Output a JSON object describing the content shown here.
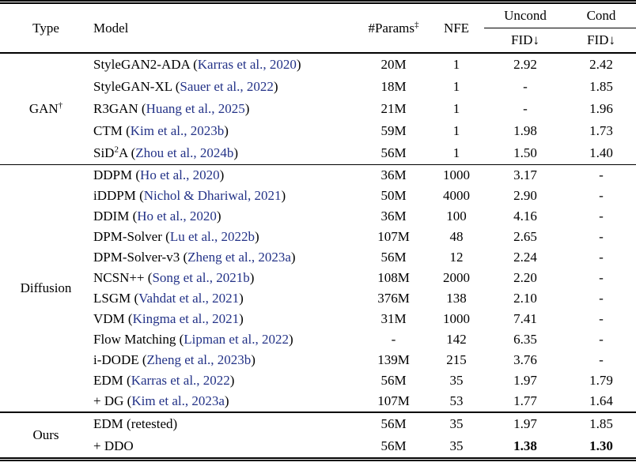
{
  "colors": {
    "citation": "#233287",
    "text": "#000000"
  },
  "table": {
    "header": {
      "type": "Type",
      "model": "Model",
      "params": "#Params",
      "params_sup": "‡",
      "nfe": "NFE",
      "uncond": "Uncond",
      "cond": "Cond",
      "fid_uncond": "FID↓",
      "fid_cond": "FID↓"
    },
    "sections": [
      {
        "label": "GAN",
        "label_sup": "†",
        "rows": [
          {
            "model": [
              {
                "t": "StyleGAN2-ADA"
              }
            ],
            "cite": "Karras et al., 2020",
            "params": "20M",
            "nfe": "1",
            "uncond": "2.92",
            "cond": "2.42"
          },
          {
            "model": [
              {
                "t": "StyleGAN-XL"
              }
            ],
            "cite": "Sauer et al., 2022",
            "params": "18M",
            "nfe": "1",
            "uncond": "-",
            "cond": "1.85"
          },
          {
            "model": [
              {
                "t": "R3GAN"
              }
            ],
            "cite": "Huang et al., 2025",
            "params": "21M",
            "nfe": "1",
            "uncond": "-",
            "cond": "1.96"
          },
          {
            "model": [
              {
                "t": "CTM"
              }
            ],
            "cite": "Kim et al., 2023b",
            "params": "59M",
            "nfe": "1",
            "uncond": "1.98",
            "cond": "1.73"
          },
          {
            "model": [
              {
                "t": "SiD"
              },
              {
                "t": "2",
                "sup": true
              },
              {
                "t": "A"
              }
            ],
            "cite": "Zhou et al., 2024b",
            "params": "56M",
            "nfe": "1",
            "uncond": "1.50",
            "cond": "1.40"
          }
        ]
      },
      {
        "label": "Diffusion",
        "label_sup": "",
        "rows": [
          {
            "model": [
              {
                "t": "DDPM"
              }
            ],
            "cite": "Ho et al., 2020",
            "params": "36M",
            "nfe": "1000",
            "uncond": "3.17",
            "cond": "-"
          },
          {
            "model": [
              {
                "t": "iDDPM"
              }
            ],
            "cite": "Nichol & Dhariwal, 2021",
            "params": "50M",
            "nfe": "4000",
            "uncond": "2.90",
            "cond": "-"
          },
          {
            "model": [
              {
                "t": "DDIM"
              }
            ],
            "cite": "Ho et al., 2020",
            "params": "36M",
            "nfe": "100",
            "uncond": "4.16",
            "cond": "-"
          },
          {
            "model": [
              {
                "t": "DPM-Solver"
              }
            ],
            "cite": "Lu et al., 2022b",
            "params": "107M",
            "nfe": "48",
            "uncond": "2.65",
            "cond": "-"
          },
          {
            "model": [
              {
                "t": "DPM-Solver-v3"
              }
            ],
            "cite": "Zheng et al., 2023a",
            "params": "56M",
            "nfe": "12",
            "uncond": "2.24",
            "cond": "-"
          },
          {
            "model": [
              {
                "t": "NCSN++"
              }
            ],
            "cite": "Song et al., 2021b",
            "params": "108M",
            "nfe": "2000",
            "uncond": "2.20",
            "cond": "-"
          },
          {
            "model": [
              {
                "t": "LSGM"
              }
            ],
            "cite": "Vahdat et al., 2021",
            "params": "376M",
            "nfe": "138",
            "uncond": "2.10",
            "cond": "-"
          },
          {
            "model": [
              {
                "t": "VDM"
              }
            ],
            "cite": "Kingma et al., 2021",
            "params": "31M",
            "nfe": "1000",
            "uncond": "7.41",
            "cond": "-"
          },
          {
            "model": [
              {
                "t": "Flow Matching"
              }
            ],
            "cite": "Lipman et al., 2022",
            "params": "-",
            "nfe": "142",
            "uncond": "6.35",
            "cond": "-"
          },
          {
            "model": [
              {
                "t": "i-DODE"
              }
            ],
            "cite": "Zheng et al., 2023b",
            "params": "139M",
            "nfe": "215",
            "uncond": "3.76",
            "cond": "-"
          },
          {
            "model": [
              {
                "t": "EDM"
              }
            ],
            "cite": "Karras et al., 2022",
            "params": "56M",
            "nfe": "35",
            "uncond": "1.97",
            "cond": "1.79"
          },
          {
            "model": [
              {
                "t": "+ DG"
              }
            ],
            "cite": "Kim et al., 2023a",
            "params": "107M",
            "nfe": "53",
            "uncond": "1.77",
            "cond": "1.64"
          }
        ]
      },
      {
        "label": "Ours",
        "label_sup": "",
        "rows": [
          {
            "model": [
              {
                "t": "EDM (retested)"
              }
            ],
            "cite": null,
            "params": "56M",
            "nfe": "35",
            "uncond": "1.97",
            "cond": "1.85"
          },
          {
            "model": [
              {
                "t": "+ DDO"
              }
            ],
            "cite": null,
            "params": "56M",
            "nfe": "35",
            "uncond": "1.38",
            "uncond_bold": true,
            "cond": "1.30",
            "cond_bold": true
          }
        ]
      }
    ]
  }
}
